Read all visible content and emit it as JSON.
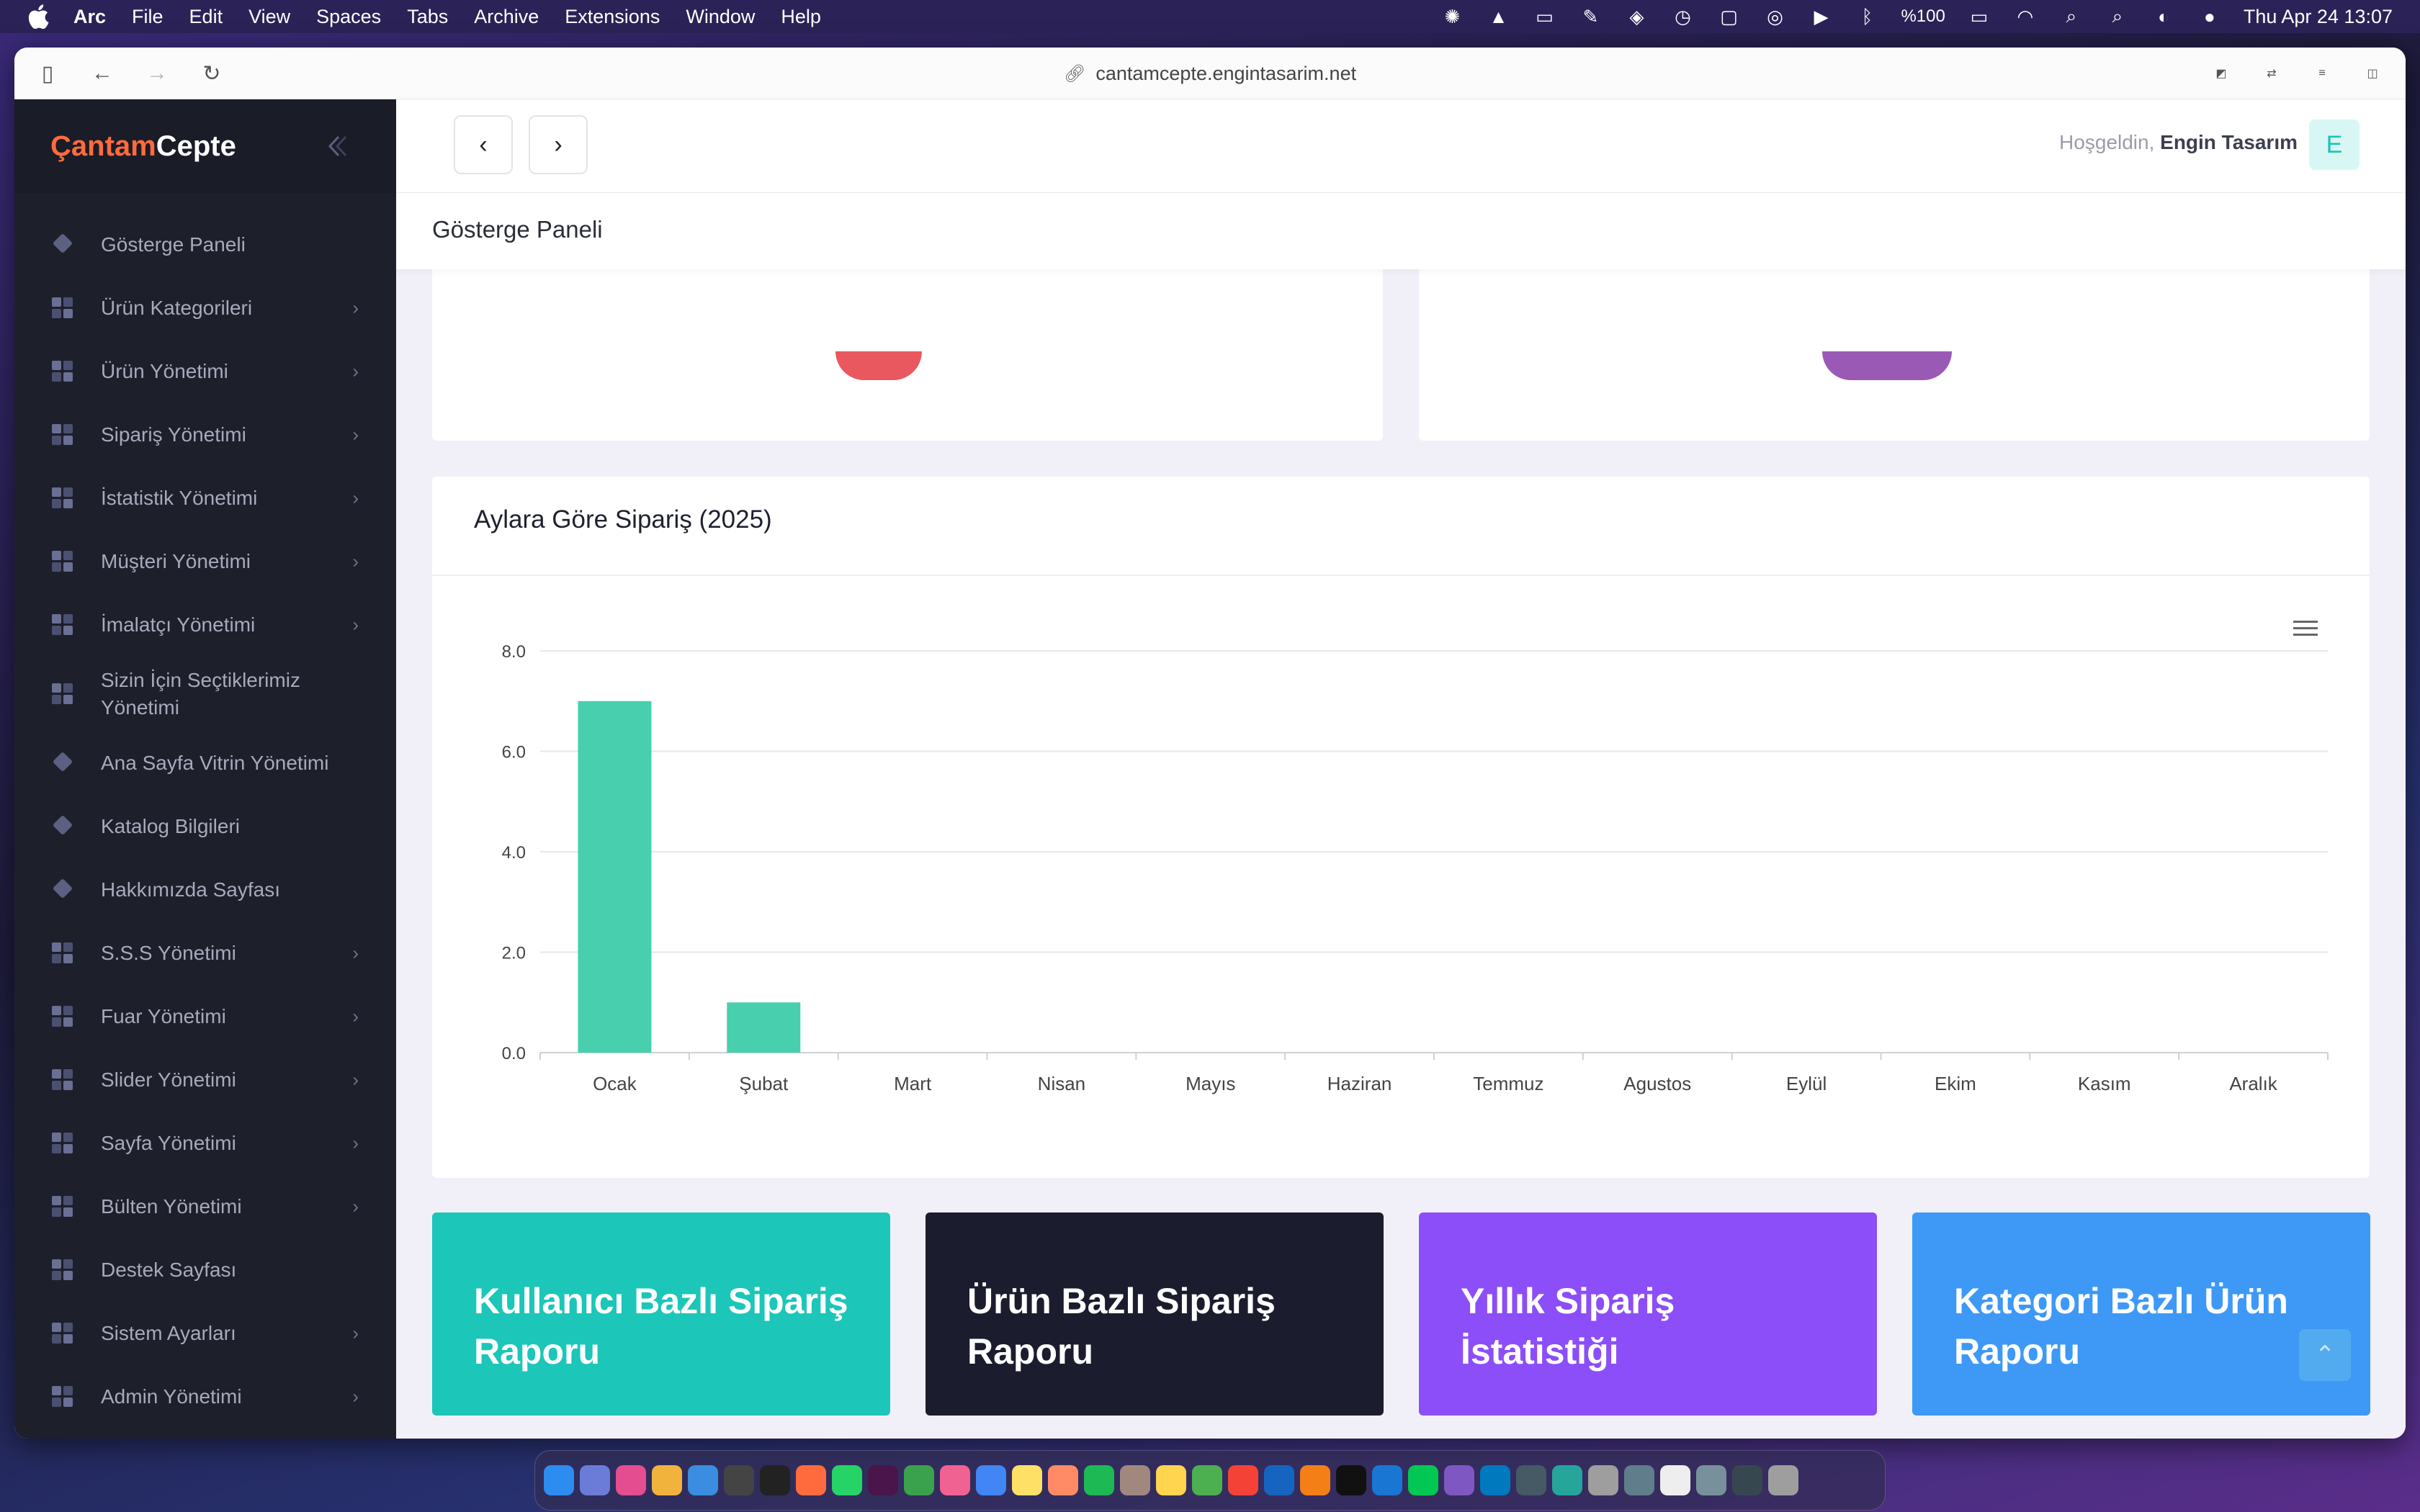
{
  "menubar": {
    "app": "Arc",
    "items": [
      "File",
      "Edit",
      "View",
      "Spaces",
      "Tabs",
      "Archive",
      "Extensions",
      "Window",
      "Help"
    ],
    "battery": "%100",
    "datetime": "Thu Apr 24  13:07"
  },
  "browser": {
    "url": "cantamcepte.engintasarim.net"
  },
  "sidebar": {
    "brand_part1": "Çantam",
    "brand_part2": "Cepte",
    "items": [
      {
        "label": "Gösterge Paneli",
        "icon": "diamond-icon",
        "chevron": false
      },
      {
        "label": "Ürün Kategorileri",
        "icon": "grid-icon",
        "chevron": true
      },
      {
        "label": "Ürün Yönetimi",
        "icon": "grid-icon",
        "chevron": true
      },
      {
        "label": "Sipariş Yönetimi",
        "icon": "grid-icon",
        "chevron": true
      },
      {
        "label": "İstatistik Yönetimi",
        "icon": "grid-icon",
        "chevron": true
      },
      {
        "label": "Müşteri Yönetimi",
        "icon": "grid-icon",
        "chevron": true
      },
      {
        "label": "İmalatçı Yönetimi",
        "icon": "grid-icon",
        "chevron": true
      },
      {
        "label": "Sizin İçin Seçtiklerimiz Yönetimi",
        "icon": "grid-icon",
        "chevron": false
      },
      {
        "label": "Ana Sayfa Vitrin Yönetimi",
        "icon": "diamond-icon",
        "chevron": false
      },
      {
        "label": "Katalog Bilgileri",
        "icon": "diamond-icon",
        "chevron": false
      },
      {
        "label": "Hakkımızda Sayfası",
        "icon": "diamond-icon",
        "chevron": false
      },
      {
        "label": "S.S.S Yönetimi",
        "icon": "grid-icon",
        "chevron": true
      },
      {
        "label": "Fuar Yönetimi",
        "icon": "grid-icon",
        "chevron": true
      },
      {
        "label": "Slider Yönetimi",
        "icon": "grid-icon",
        "chevron": true
      },
      {
        "label": "Sayfa Yönetimi",
        "icon": "grid-icon",
        "chevron": true
      },
      {
        "label": "Bülten Yönetimi",
        "icon": "grid-icon",
        "chevron": true
      },
      {
        "label": "Destek Sayfası",
        "icon": "grid-icon",
        "chevron": false
      },
      {
        "label": "Sistem Ayarları",
        "icon": "grid-icon",
        "chevron": true
      },
      {
        "label": "Admin Yönetimi",
        "icon": "grid-icon",
        "chevron": true
      }
    ]
  },
  "header": {
    "welcome": "Hoşgeldin,",
    "user": "Engin Tasarım",
    "avatar_letter": "E"
  },
  "page_title": "Gösterge Paneli",
  "chart_card_title": "Aylara Göre Sipariş (2025)",
  "chart_data": {
    "type": "bar",
    "title": "Aylara Göre Sipariş (2025)",
    "categories": [
      "Ocak",
      "Şubat",
      "Mart",
      "Nisan",
      "Mayıs",
      "Haziran",
      "Temmuz",
      "Agustos",
      "Eylül",
      "Ekim",
      "Kasım",
      "Aralık"
    ],
    "values": [
      7,
      1,
      0,
      0,
      0,
      0,
      0,
      0,
      0,
      0,
      0,
      0
    ],
    "yticks": [
      "0.0",
      "2.0",
      "4.0",
      "6.0",
      "8.0"
    ],
    "ylim": [
      0,
      8
    ],
    "grid": true,
    "color": "#48cfad"
  },
  "tiles": [
    {
      "label": "Kullanıcı Bazlı Sipariş Raporu",
      "color": "#1cc6b8"
    },
    {
      "label": "Ürün Bazlı Sipariş Raporu",
      "color": "#1b1d2e"
    },
    {
      "label": "Yıllık Sipariş İstatistiği",
      "color": "#8c4ef8"
    },
    {
      "label": "Kategori Bazlı Ürün Raporu",
      "color": "#3d99f5"
    }
  ]
}
